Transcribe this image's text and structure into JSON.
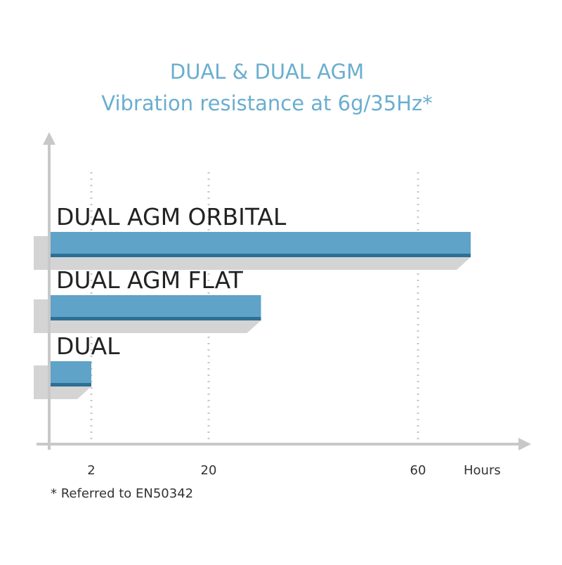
{
  "chart_data": {
    "type": "bar",
    "orientation": "horizontal",
    "title": "DUAL & DUAL AGM",
    "subtitle": "Vibration resistance at 6g/35Hz*",
    "categories": [
      "DUAL AGM ORBITAL",
      "DUAL AGM FLAT",
      "DUAL"
    ],
    "values": [
      70,
      30,
      2
    ],
    "color": "#5fa3c8",
    "xlim": [
      0,
      80
    ],
    "xticks": [
      2,
      20,
      60
    ],
    "x_label": "Hours",
    "grid": true,
    "footnote": "* Referred to EN50342"
  }
}
